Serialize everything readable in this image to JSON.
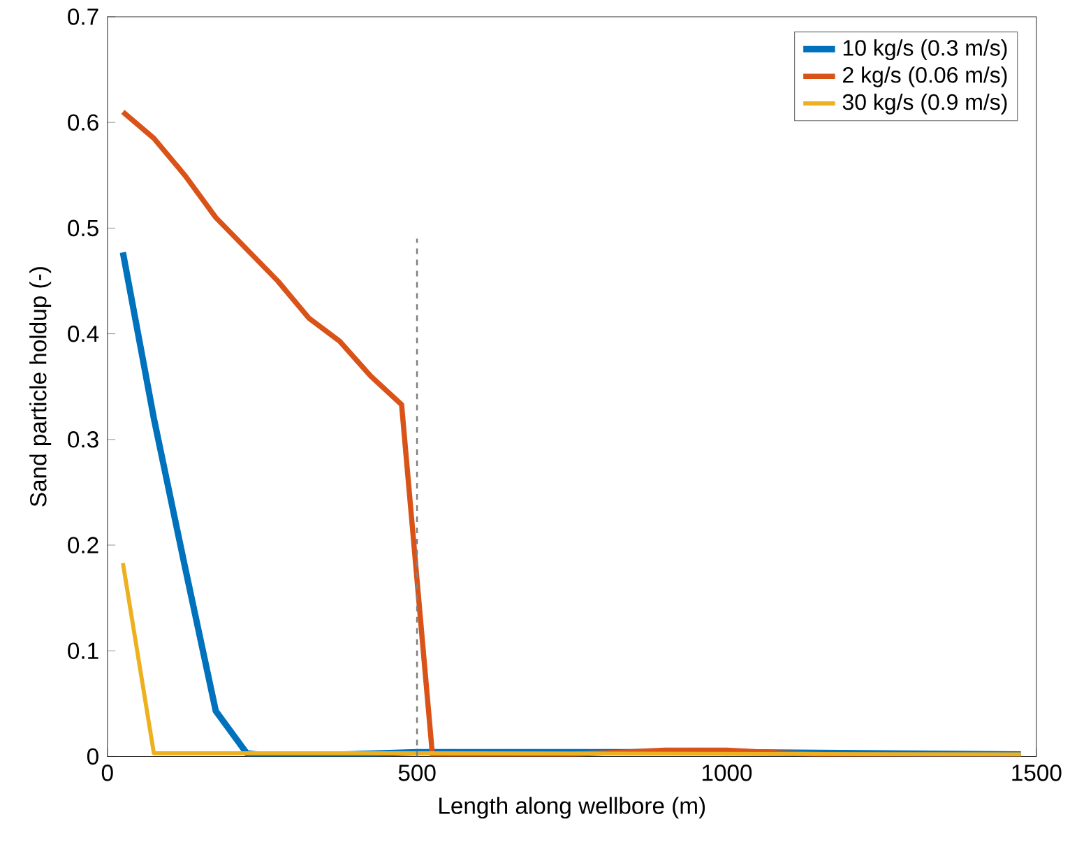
{
  "chart_data": {
    "type": "line",
    "xlabel": "Length along wellbore (m)",
    "ylabel": "Sand particle holdup (-)",
    "xlim": [
      0,
      1500
    ],
    "ylim": [
      0,
      0.7
    ],
    "xticks": [
      0,
      500,
      1000,
      1500
    ],
    "yticks": [
      0,
      0.1,
      0.2,
      0.3,
      0.4,
      0.5,
      0.6,
      0.7
    ],
    "grid": false,
    "legend": "top right",
    "line_style": "solid",
    "marker": "none",
    "series": [
      {
        "name": "10 kg/s (0.3 m/s)",
        "color": "#0072bd",
        "x": [
          25,
          75,
          125,
          175,
          225,
          275,
          500,
          1000,
          1475
        ],
        "values": [
          0.477,
          0.32,
          0.18,
          0.043,
          0.003,
          0.0,
          0.004,
          0.004,
          0.002
        ]
      },
      {
        "name": "2 kg/s (0.06 m/s)",
        "color": "#d95319",
        "x": [
          25,
          75,
          125,
          175,
          225,
          275,
          325,
          375,
          425,
          475,
          525,
          600,
          750,
          900,
          1000,
          1100,
          1200,
          1475
        ],
        "values": [
          0.61,
          0.585,
          0.55,
          0.51,
          0.48,
          0.45,
          0.415,
          0.393,
          0.36,
          0.333,
          0.0,
          0.0,
          0.002,
          0.006,
          0.006,
          0.003,
          0.001,
          0.001
        ]
      },
      {
        "name": "30 kg/s (0.9 m/s)",
        "color": "#edb120",
        "x": [
          25,
          75,
          500,
          1475
        ],
        "values": [
          0.183,
          0.003,
          0.003,
          0.002
        ]
      },
      {
        "color": "#808080",
        "line_style": "dashed",
        "x": [
          500,
          500
        ],
        "values": [
          0,
          0.49
        ]
      }
    ]
  }
}
